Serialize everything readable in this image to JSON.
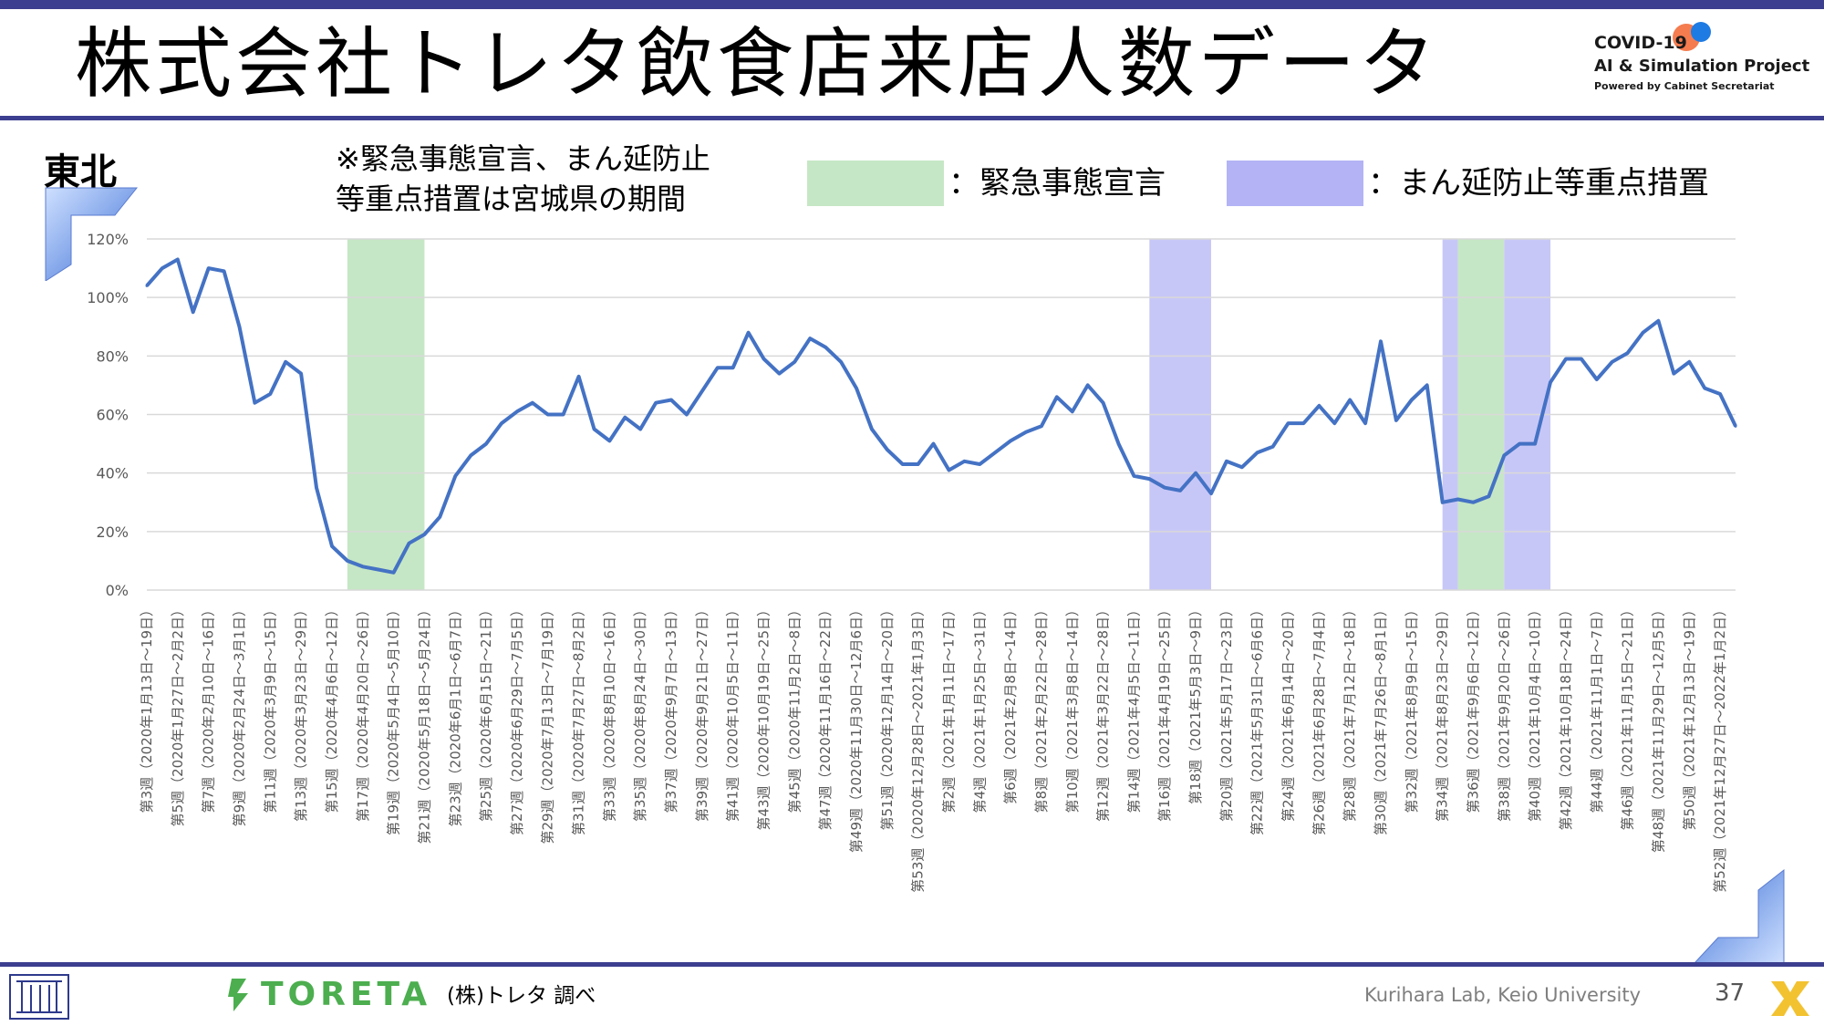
{
  "slide": {
    "title": "株式会社トレタ飲食店来店人数データ",
    "region": "東北",
    "note_line1": "※緊急事態宣言、まん延防止",
    "note_line2": "等重点措置は宮城県の期間",
    "legend_emergency": "：緊急事態宣言",
    "legend_manen": "：まん延防止等重点措置",
    "source": "(株)トレタ 調べ",
    "credit": "Kurihara Lab, Keio University",
    "page_number": "37",
    "toreta_logo": "TORETA"
  },
  "brand": {
    "line1": "COVID-19",
    "line2": "AI & Simulation Project",
    "line3": "Powered by Cabinet Secretariat"
  },
  "colors": {
    "line": "#4472c4",
    "emergency": "#c6e7c5",
    "manen": "#c7c7f7",
    "header_bar": "#3c3f8f",
    "grid": "#d9d9d9"
  },
  "chart_data": {
    "type": "line",
    "ylim": [
      0,
      120
    ],
    "y_ticks": [
      "0%",
      "20%",
      "40%",
      "60%",
      "80%",
      "100%",
      "120%"
    ],
    "y_tick_values": [
      0,
      20,
      40,
      60,
      80,
      100,
      120
    ],
    "x_count": 104,
    "x_labels": [
      {
        "i": 0,
        "text": "第3週（2020年1月13日～19日）"
      },
      {
        "i": 2,
        "text": "第5週（2020年1月27日～2月2日）"
      },
      {
        "i": 4,
        "text": "第7週（2020年2月10日～16日）"
      },
      {
        "i": 6,
        "text": "第9週（2020年2月24日～3月1日）"
      },
      {
        "i": 8,
        "text": "第11週（2020年3月9日～15日）"
      },
      {
        "i": 10,
        "text": "第13週（2020年3月23日～29日）"
      },
      {
        "i": 12,
        "text": "第15週（2020年4月6日～12日）"
      },
      {
        "i": 14,
        "text": "第17週（2020年4月20日～26日）"
      },
      {
        "i": 16,
        "text": "第19週（2020年5月4日～5月10日）"
      },
      {
        "i": 18,
        "text": "第21週（2020年5月18日～5月24日）"
      },
      {
        "i": 20,
        "text": "第23週（2020年6月1日～6月7日）"
      },
      {
        "i": 22,
        "text": "第25週（2020年6月15日～21日）"
      },
      {
        "i": 24,
        "text": "第27週（2020年6月29日～7月5日）"
      },
      {
        "i": 26,
        "text": "第29週（2020年7月13日～7月19日）"
      },
      {
        "i": 28,
        "text": "第31週（2020年7月27日～8月2日）"
      },
      {
        "i": 30,
        "text": "第33週（2020年8月10日～16日）"
      },
      {
        "i": 32,
        "text": "第35週（2020年8月24日～30日）"
      },
      {
        "i": 34,
        "text": "第37週（2020年9月7日～13日）"
      },
      {
        "i": 36,
        "text": "第39週（2020年9月21日～27日）"
      },
      {
        "i": 38,
        "text": "第41週（2020年10月5日～11日）"
      },
      {
        "i": 40,
        "text": "第43週（2020年10月19日～25日）"
      },
      {
        "i": 42,
        "text": "第45週（2020年11月2日～8日）"
      },
      {
        "i": 44,
        "text": "第47週（2020年11月16日～22日）"
      },
      {
        "i": 46,
        "text": "第49週（2020年11月30日～12月6日）"
      },
      {
        "i": 48,
        "text": "第51週（2020年12月14日～20日）"
      },
      {
        "i": 50,
        "text": "第53週（2020年12月28日～2021年1月3日）"
      },
      {
        "i": 52,
        "text": "第2週（2021年1月11日～17日）"
      },
      {
        "i": 54,
        "text": "第4週（2021年1月25日～31日）"
      },
      {
        "i": 56,
        "text": "第6週（2021年2月8日～14日）"
      },
      {
        "i": 58,
        "text": "第8週（2021年2月22日～28日）"
      },
      {
        "i": 60,
        "text": "第10週（2021年3月8日～14日）"
      },
      {
        "i": 62,
        "text": "第12週（2021年3月22日～28日）"
      },
      {
        "i": 64,
        "text": "第14週（2021年4月5日～11日）"
      },
      {
        "i": 66,
        "text": "第16週（2021年4月19日～25日）"
      },
      {
        "i": 68,
        "text": "第18週（2021年5月3日～9日）"
      },
      {
        "i": 70,
        "text": "第20週（2021年5月17日～23日）"
      },
      {
        "i": 72,
        "text": "第22週（2021年5月31日～6月6日）"
      },
      {
        "i": 74,
        "text": "第24週（2021年6月14日～20日）"
      },
      {
        "i": 76,
        "text": "第26週（2021年6月28日～7月4日）"
      },
      {
        "i": 78,
        "text": "第28週（2021年7月12日～18日）"
      },
      {
        "i": 80,
        "text": "第30週（2021年7月26日～8月1日）"
      },
      {
        "i": 82,
        "text": "第32週（2021年8月9日～15日）"
      },
      {
        "i": 84,
        "text": "第34週（2021年8月23日～29日）"
      },
      {
        "i": 86,
        "text": "第36週（2021年9月6日～12日）"
      },
      {
        "i": 88,
        "text": "第38週（2021年9月20日～26日）"
      },
      {
        "i": 90,
        "text": "第40週（2021年10月4日～10日）"
      },
      {
        "i": 92,
        "text": "第42週（2021年10月18日～24日）"
      },
      {
        "i": 94,
        "text": "第44週（2021年11月1日～7日）"
      },
      {
        "i": 96,
        "text": "第46週（2021年11月15日～21日）"
      },
      {
        "i": 98,
        "text": "第48週（2021年11月29日～12月5日）"
      },
      {
        "i": 100,
        "text": "第50週（2021年12月13日～19日）"
      },
      {
        "i": 102,
        "text": "第52週（2021年12月27日～2022年1月2日）"
      }
    ],
    "series": [
      {
        "values": [
          104,
          110,
          113,
          95,
          110,
          109,
          90,
          64,
          67,
          78,
          74,
          35,
          15,
          10,
          8,
          7,
          6,
          16,
          19,
          25,
          39,
          46,
          50,
          57,
          61,
          64,
          60,
          60,
          73,
          55,
          51,
          59,
          55,
          64,
          65,
          60,
          68,
          76,
          76,
          88,
          79,
          74,
          78,
          86,
          83,
          78,
          69,
          55,
          48,
          43,
          43,
          50,
          41,
          44,
          43,
          47,
          51,
          54,
          56,
          66,
          61,
          70,
          64,
          50,
          39,
          38,
          35,
          34,
          40,
          33,
          44,
          42,
          47,
          49,
          57,
          57,
          63,
          57,
          65,
          57,
          85,
          58,
          65,
          70,
          30,
          31,
          30,
          32,
          46,
          50,
          50,
          71,
          79,
          79,
          72,
          78,
          81,
          88,
          92,
          74,
          78,
          69,
          67,
          56
        ]
      }
    ],
    "shaded_periods": [
      {
        "type": "emergency",
        "from": 13,
        "to": 18
      },
      {
        "type": "manen",
        "from": 65,
        "to": 69
      },
      {
        "type": "manen",
        "from": 84,
        "to": 85
      },
      {
        "type": "emergency",
        "from": 85,
        "to": 88
      },
      {
        "type": "manen",
        "from": 88,
        "to": 91
      }
    ]
  }
}
